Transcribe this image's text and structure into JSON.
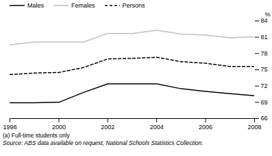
{
  "chart_data": {
    "type": "line",
    "x": [
      1998,
      1999,
      2000,
      2001,
      2002,
      2003,
      2004,
      2005,
      2006,
      2007,
      2008
    ],
    "series": [
      {
        "name": "Males",
        "color": "#000000",
        "line_style": "solid",
        "values": [
          68.9,
          68.9,
          69.0,
          70.8,
          72.4,
          72.4,
          72.4,
          71.5,
          71.0,
          70.6,
          70.2
        ]
      },
      {
        "name": "Females",
        "color": "#c0c0c0",
        "line_style": "solid",
        "values": [
          79.6,
          80.1,
          80.1,
          80.1,
          81.7,
          81.7,
          82.3,
          81.6,
          81.4,
          80.9,
          81.1
        ]
      },
      {
        "name": "Persons",
        "color": "#000000",
        "line_style": "dashed",
        "values": [
          74.1,
          74.4,
          74.5,
          75.4,
          77.0,
          77.1,
          77.3,
          76.5,
          76.2,
          75.6,
          75.6
        ]
      }
    ],
    "y_label": "%",
    "xlim": [
      1998,
      2008
    ],
    "xticks": [
      1998,
      2000,
      2002,
      2004,
      2006,
      2008
    ],
    "ylim": [
      66,
      84
    ],
    "yticks": [
      66,
      69,
      72,
      75,
      78,
      81,
      84
    ],
    "grid": false,
    "legend": "top-left",
    "notes": [
      "(a) Full-time students only"
    ],
    "source": "Source: ABS data available on request, National Schools Statistics Collection."
  }
}
